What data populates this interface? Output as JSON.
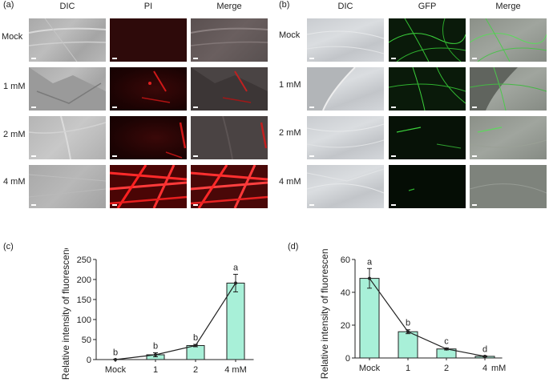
{
  "panel_a": {
    "label": "(a)",
    "columns": [
      "DIC",
      "PI",
      "Merge"
    ],
    "rows": [
      "Mock",
      "1 mM",
      "2 mM",
      "4 mM"
    ]
  },
  "panel_b": {
    "label": "(b)",
    "columns": [
      "DIC",
      "GFP",
      "Merge"
    ],
    "rows": [
      "Mock",
      "1 mM",
      "2 mM",
      "4 mM"
    ]
  },
  "colors": {
    "bar_fill": "#a8f0d8",
    "bar_stroke": "#222222",
    "pi_red": "#ff2a2a",
    "gfp_green": "#3cd23c"
  },
  "chart_data": [
    {
      "panel": "(c)",
      "type": "bar",
      "categories": [
        "Mock",
        "1",
        "2",
        "4 mM"
      ],
      "values": [
        0,
        12,
        35,
        191
      ],
      "errors": [
        1,
        5,
        3,
        22
      ],
      "letters": [
        "b",
        "b",
        "b",
        "a"
      ],
      "ylabel": "Relative intensity of fluorescence",
      "ylim": [
        0,
        250
      ],
      "yticks": [
        0,
        50,
        100,
        150,
        200,
        250
      ],
      "line_overlay": true
    },
    {
      "panel": "(d)",
      "type": "bar",
      "categories": [
        "Mock",
        "1",
        "2",
        "4"
      ],
      "unit": "mM",
      "values": [
        48.5,
        16,
        5.5,
        1
      ],
      "errors": [
        6,
        1.2,
        0.6,
        0.3
      ],
      "letters": [
        "a",
        "b",
        "c",
        "d"
      ],
      "ylabel": "Relative intensity of fluorescence",
      "ylim": [
        0,
        60
      ],
      "yticks": [
        0,
        20,
        40,
        60
      ],
      "line_overlay": true
    }
  ]
}
